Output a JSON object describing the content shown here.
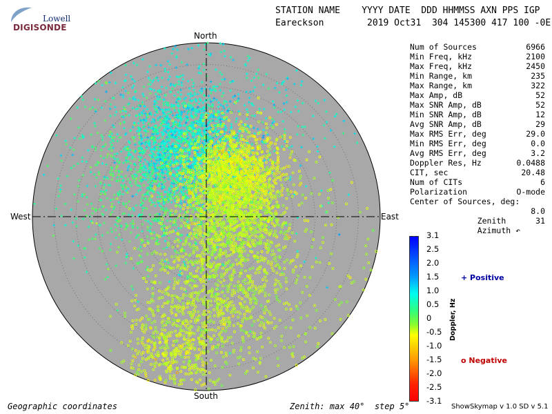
{
  "logo": {
    "line1": "Lowell",
    "line2": "DIGISONDE"
  },
  "header": {
    "line1": "STATION NAME    YYYY DATE  DDD HHMMSS AXN PPS IGP",
    "line2": "Eareckson        2019 Oct31  304 145300 417 100 -0E"
  },
  "compass": {
    "north": "North",
    "south": "South",
    "east": "East",
    "west": "West"
  },
  "stats": [
    {
      "label": "Num of Sources",
      "value": "6966"
    },
    {
      "label": "Min Freq, kHz",
      "value": "2100"
    },
    {
      "label": "Max Freq, kHz",
      "value": "2450"
    },
    {
      "label": "Min Range, km",
      "value": "235"
    },
    {
      "label": "Max Range, km",
      "value": "322"
    },
    {
      "label": "Max Amp, dB",
      "value": "52"
    },
    {
      "label": "Max SNR Amp, dB",
      "value": "52"
    },
    {
      "label": "Min SNR Amp, dB",
      "value": "12"
    },
    {
      "label": "Avg SNR Amp, dB",
      "value": "29"
    },
    {
      "label": "Max RMS Err, deg",
      "value": "29.0"
    },
    {
      "label": "Min RMS Err, deg",
      "value": "0.0"
    },
    {
      "label": "Avg RMS Err, deg",
      "value": "3.2"
    },
    {
      "label": "Doppler Res, Hz",
      "value": "0.0488"
    },
    {
      "label": "CIT, sec",
      "value": "20.48"
    },
    {
      "label": "Num of CITs",
      "value": "6"
    },
    {
      "label": "Polarization",
      "value": "O-mode"
    }
  ],
  "center": {
    "title": "Center of Sources, deg:",
    "zenith_label": "Zenith",
    "zenith_value": "8.0",
    "azimuth_label": "Azimuth ↶",
    "azimuth_value": "31"
  },
  "colorbar": {
    "label": "Doppler, Hz",
    "ticks": [
      "3.1",
      "2.5",
      "2.0",
      "1.5",
      "1.0",
      "0.5",
      "0",
      "-0.5",
      "-1.0",
      "-1.5",
      "-2.0",
      "-2.5",
      "-3.1"
    ]
  },
  "legend": {
    "positive": "+ Positive",
    "negative": "o Negative"
  },
  "footer": {
    "left": "Geographic coordinates",
    "middle": "Zenith: max 40°  step 5°",
    "version": "ShowSkymap v 1.0   SD v 5.1"
  },
  "chart_data": {
    "type": "scatter",
    "projection": "polar-skymap",
    "zenith_max_deg": 40,
    "zenith_step_deg": 5,
    "background": "#a8a8a8",
    "doppler_range_hz": [
      -3.1,
      3.1
    ],
    "clusters": [
      {
        "sign": "positive",
        "zenith_deg": 17,
        "azimuth_deg": 345,
        "doppler_hz": 1.0,
        "count": 1600,
        "spread_deg": 6.5
      },
      {
        "sign": "positive",
        "zenith_deg": 14,
        "azimuth_deg": 300,
        "doppler_hz": 0.4,
        "count": 900,
        "spread_deg": 10
      },
      {
        "sign": "positive",
        "zenith_deg": 30,
        "azimuth_deg": 0,
        "doppler_hz": 0.9,
        "count": 700,
        "spread_deg": 18
      },
      {
        "sign": "negative",
        "zenith_deg": 11,
        "azimuth_deg": 35,
        "doppler_hz": -0.8,
        "count": 1400,
        "spread_deg": 5.5
      },
      {
        "sign": "negative",
        "zenith_deg": 6,
        "azimuth_deg": 90,
        "doppler_hz": -0.45,
        "count": 900,
        "spread_deg": 6
      },
      {
        "sign": "negative",
        "zenith_deg": 18,
        "azimuth_deg": 175,
        "doppler_hz": -0.5,
        "count": 900,
        "spread_deg": 9
      },
      {
        "sign": "negative",
        "zenith_deg": 32,
        "azimuth_deg": 195,
        "doppler_hz": -0.7,
        "count": 350,
        "spread_deg": 5
      },
      {
        "sign": "negative",
        "zenith_deg": 25,
        "azimuth_deg": 120,
        "doppler_hz": -0.5,
        "count": 216,
        "spread_deg": 14
      }
    ]
  }
}
